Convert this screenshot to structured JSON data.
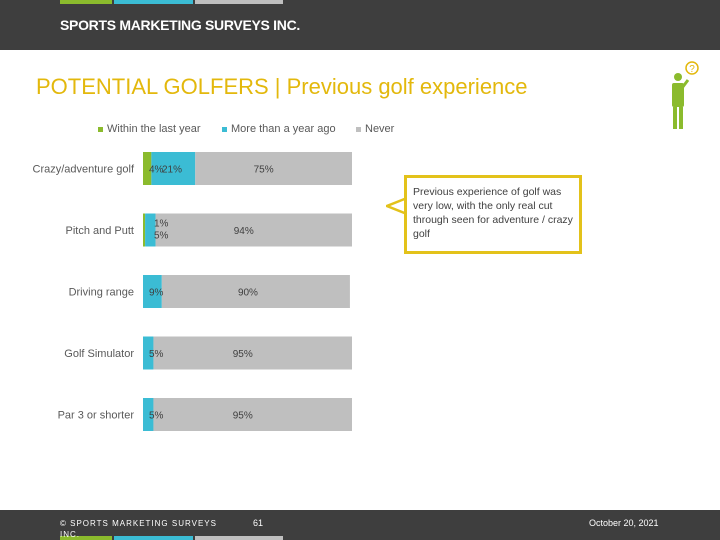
{
  "header": {
    "brand": "SPORTS MARKETING SURVEYS INC.",
    "stripe_colors": [
      "#8bbb2d",
      "#3bbcd4",
      "#bfbfbf"
    ]
  },
  "slide": {
    "title": "POTENTIAL GOLFERS  |  Previous golf experience",
    "title_color": "#e3b80c"
  },
  "callout": {
    "text": "Previous experience of golf was very low, with the only real cut through seen for adventure / crazy golf",
    "border_color": "#e3c21a"
  },
  "chart_data": {
    "type": "bar",
    "orientation": "horizontal",
    "stacked": true,
    "categories": [
      "Crazy/adventure golf",
      "Pitch and Putt",
      "Driving range",
      "Golf Simulator",
      "Par 3 or shorter"
    ],
    "series": [
      {
        "name": "Within the last year",
        "color": "#8bbb2d",
        "values": [
          4,
          1,
          0,
          0,
          0
        ],
        "labels": [
          "4%",
          "1%",
          "",
          "",
          ""
        ]
      },
      {
        "name": "More than a year ago",
        "color": "#3bbcd4",
        "values": [
          21,
          5,
          9,
          5,
          5
        ],
        "labels": [
          "21%",
          "5%",
          "9%",
          "5%",
          "5%"
        ]
      },
      {
        "name": "Never",
        "color": "#bfbfbf",
        "values": [
          75,
          94,
          90,
          95,
          95
        ],
        "labels": [
          "75%",
          "94%",
          "90%",
          "95%",
          "95%"
        ]
      }
    ],
    "legend_position": "top",
    "grid": false
  },
  "footer": {
    "copyright": "© SPORTS MARKETING SURVEYS INC.",
    "page": "61",
    "date": "October 20, 2021"
  }
}
